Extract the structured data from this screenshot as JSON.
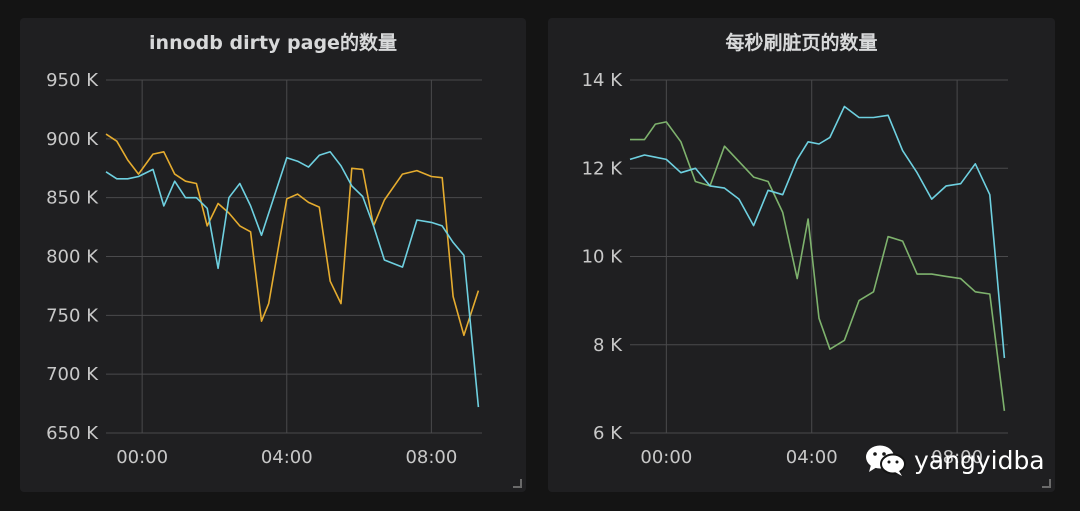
{
  "watermark": {
    "text": "yangyidba",
    "icon": "wechat-icon"
  },
  "chart_data": [
    {
      "type": "line",
      "title": "innodb dirty page的数量",
      "xlabel": "",
      "ylabel": "",
      "x_ticks": [
        "00:00",
        "04:00",
        "08:00"
      ],
      "y_ticks": [
        "950 K",
        "900 K",
        "850 K",
        "800 K",
        "750 K",
        "700 K",
        "650 K"
      ],
      "xlim": [
        -1.0,
        9.4
      ],
      "ylim": [
        650000,
        950000
      ],
      "grid": true,
      "legend": "none",
      "series": [
        {
          "color": "#e5ac2f",
          "x": [
            -1.0,
            -0.7,
            -0.4,
            -0.1,
            0.3,
            0.6,
            0.9,
            1.2,
            1.5,
            1.8,
            2.1,
            2.4,
            2.7,
            3.0,
            3.3,
            3.5,
            4.0,
            4.3,
            4.6,
            4.9,
            5.2,
            5.5,
            5.8,
            6.1,
            6.4,
            6.7,
            7.2,
            7.6,
            8.0,
            8.3,
            8.6,
            8.9,
            9.3
          ],
          "y": [
            904000,
            898000,
            882000,
            870000,
            887000,
            889000,
            870000,
            864000,
            862000,
            826000,
            845000,
            837000,
            826000,
            821000,
            745000,
            760000,
            849000,
            853000,
            846000,
            842000,
            779000,
            760000,
            875000,
            874000,
            826000,
            848000,
            870000,
            873000,
            868000,
            867000,
            766000,
            733000,
            771000
          ]
        },
        {
          "color": "#6ed0e0",
          "x": [
            -1.0,
            -0.7,
            -0.4,
            -0.1,
            0.3,
            0.6,
            0.9,
            1.2,
            1.5,
            1.8,
            2.1,
            2.4,
            2.7,
            3.0,
            3.3,
            4.0,
            4.3,
            4.6,
            4.9,
            5.2,
            5.5,
            5.8,
            6.1,
            6.4,
            6.7,
            7.2,
            7.6,
            8.0,
            8.3,
            8.6,
            8.9,
            9.3
          ],
          "y": [
            872000,
            866000,
            866000,
            868000,
            874000,
            843000,
            864000,
            850000,
            850000,
            841000,
            790000,
            850000,
            862000,
            843000,
            818000,
            884000,
            881000,
            876000,
            886000,
            889000,
            877000,
            860000,
            851000,
            826000,
            797000,
            791000,
            831000,
            829000,
            826000,
            812000,
            801000,
            672000
          ]
        }
      ]
    },
    {
      "type": "line",
      "title": "每秒刷脏页的数量",
      "xlabel": "",
      "ylabel": "",
      "x_ticks": [
        "00:00",
        "04:00",
        "08:00"
      ],
      "y_ticks": [
        "14 K",
        "12 K",
        "10 K",
        "8 K",
        "6 K"
      ],
      "xlim": [
        -1.0,
        9.4
      ],
      "ylim": [
        6000,
        14000
      ],
      "grid": true,
      "legend": "none",
      "series": [
        {
          "color": "#7eb26d",
          "x": [
            -1.0,
            -0.6,
            -0.3,
            0.0,
            0.4,
            0.8,
            1.2,
            1.6,
            2.0,
            2.4,
            2.8,
            3.2,
            3.6,
            3.9,
            4.2,
            4.5,
            4.9,
            5.3,
            5.7,
            6.1,
            6.5,
            6.9,
            7.3,
            7.7,
            8.1,
            8.5,
            8.9,
            9.3
          ],
          "y": [
            12650,
            12650,
            13000,
            13050,
            12600,
            11700,
            11600,
            12500,
            12150,
            11800,
            11700,
            11000,
            9500,
            10850,
            8600,
            7900,
            8100,
            9000,
            9200,
            10450,
            10350,
            9600,
            9600,
            9550,
            9500,
            9200,
            9150,
            6500
          ]
        },
        {
          "color": "#6ed0e0",
          "x": [
            -1.0,
            -0.6,
            -0.3,
            0.0,
            0.4,
            0.8,
            1.2,
            1.6,
            2.0,
            2.4,
            2.8,
            3.2,
            3.6,
            3.9,
            4.2,
            4.5,
            4.9,
            5.3,
            5.7,
            6.1,
            6.5,
            6.9,
            7.3,
            7.7,
            8.1,
            8.5,
            8.9,
            9.3
          ],
          "y": [
            12200,
            12300,
            12250,
            12200,
            11900,
            12000,
            11600,
            11550,
            11300,
            10700,
            11500,
            11400,
            12200,
            12600,
            12550,
            12700,
            13400,
            13150,
            13150,
            13200,
            12400,
            11900,
            11300,
            11600,
            11650,
            12100,
            11400,
            7700
          ]
        }
      ]
    }
  ]
}
